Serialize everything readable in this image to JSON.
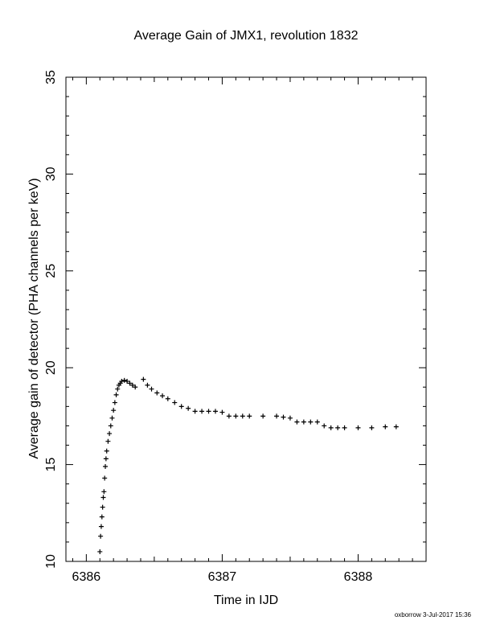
{
  "title": "Average Gain of JMX1, revolution 1832",
  "xlabel": "Time in IJD",
  "ylabel": "Average gain of detector (PHA channels per keV)",
  "footer": "oxborrow  3-Jul-2017 15:36",
  "chart_data": {
    "type": "scatter",
    "marker": "plus",
    "color": "#000000",
    "xlim": [
      6385.85,
      6388.5
    ],
    "ylim": [
      10,
      35
    ],
    "xticks": [
      6386,
      6387,
      6388
    ],
    "yticks": [
      10,
      15,
      20,
      25,
      30,
      35
    ],
    "grid": false,
    "x": [
      6386.1,
      6386.105,
      6386.11,
      6386.115,
      6386.12,
      6386.125,
      6386.13,
      6386.135,
      6386.14,
      6386.145,
      6386.15,
      6386.16,
      6386.17,
      6386.18,
      6386.19,
      6386.2,
      6386.21,
      6386.22,
      6386.23,
      6386.24,
      6386.25,
      6386.26,
      6386.28,
      6386.3,
      6386.32,
      6386.34,
      6386.36,
      6386.42,
      6386.45,
      6386.48,
      6386.52,
      6386.56,
      6386.6,
      6386.65,
      6386.7,
      6386.75,
      6386.8,
      6386.85,
      6386.9,
      6386.95,
      6387.0,
      6387.05,
      6387.1,
      6387.15,
      6387.2,
      6387.3,
      6387.4,
      6387.45,
      6387.5,
      6387.55,
      6387.6,
      6387.65,
      6387.7,
      6387.75,
      6387.8,
      6387.85,
      6387.9,
      6388.0,
      6388.1,
      6388.2,
      6388.28
    ],
    "y": [
      10.5,
      11.3,
      11.8,
      12.3,
      12.8,
      13.3,
      13.6,
      14.3,
      14.9,
      15.3,
      15.7,
      16.2,
      16.6,
      17.0,
      17.4,
      17.8,
      18.2,
      18.6,
      18.9,
      19.1,
      19.2,
      19.3,
      19.35,
      19.3,
      19.2,
      19.1,
      19.0,
      19.4,
      19.1,
      18.9,
      18.7,
      18.55,
      18.4,
      18.2,
      18.0,
      17.9,
      17.75,
      17.75,
      17.75,
      17.75,
      17.7,
      17.5,
      17.5,
      17.5,
      17.5,
      17.5,
      17.5,
      17.45,
      17.4,
      17.2,
      17.2,
      17.2,
      17.2,
      17.0,
      16.9,
      16.9,
      16.9,
      16.9,
      16.9,
      16.95,
      16.95
    ]
  }
}
